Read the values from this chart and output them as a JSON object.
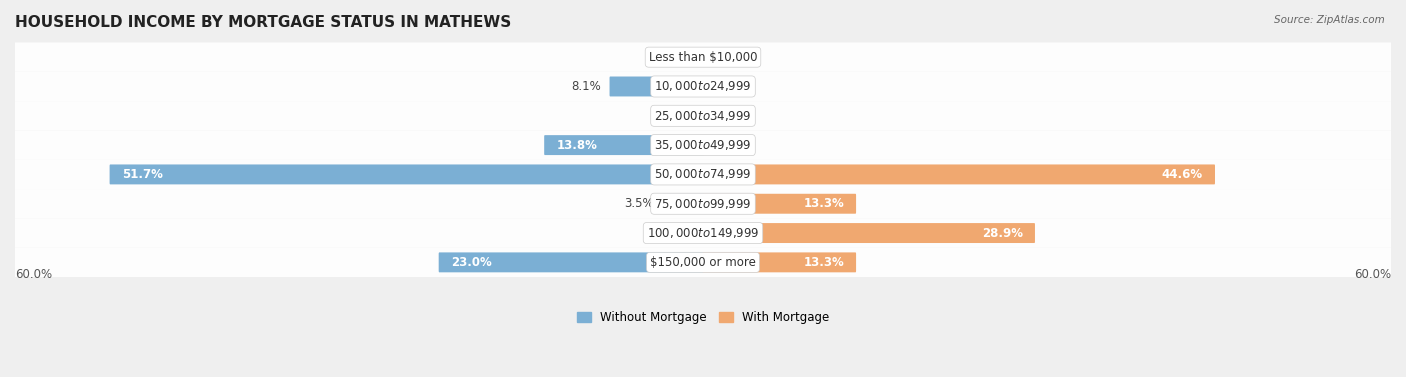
{
  "title": "HOUSEHOLD INCOME BY MORTGAGE STATUS IN MATHEWS",
  "source": "Source: ZipAtlas.com",
  "categories": [
    "Less than $10,000",
    "$10,000 to $24,999",
    "$25,000 to $34,999",
    "$35,000 to $49,999",
    "$50,000 to $74,999",
    "$75,000 to $99,999",
    "$100,000 to $149,999",
    "$150,000 or more"
  ],
  "without_mortgage": [
    0.0,
    8.1,
    0.0,
    13.8,
    51.7,
    3.5,
    0.0,
    23.0
  ],
  "with_mortgage": [
    0.0,
    0.0,
    0.0,
    0.0,
    44.6,
    13.3,
    28.9,
    13.3
  ],
  "color_without": "#7bafd4",
  "color_with": "#f0a870",
  "max_val": 60.0,
  "axis_label_left": "60.0%",
  "axis_label_right": "60.0%",
  "legend_without": "Without Mortgage",
  "legend_with": "With Mortgage",
  "bg_color": "#efefef",
  "row_bg_color": "#ffffff",
  "title_fontsize": 11,
  "label_fontsize": 8.5,
  "category_fontsize": 8.5
}
